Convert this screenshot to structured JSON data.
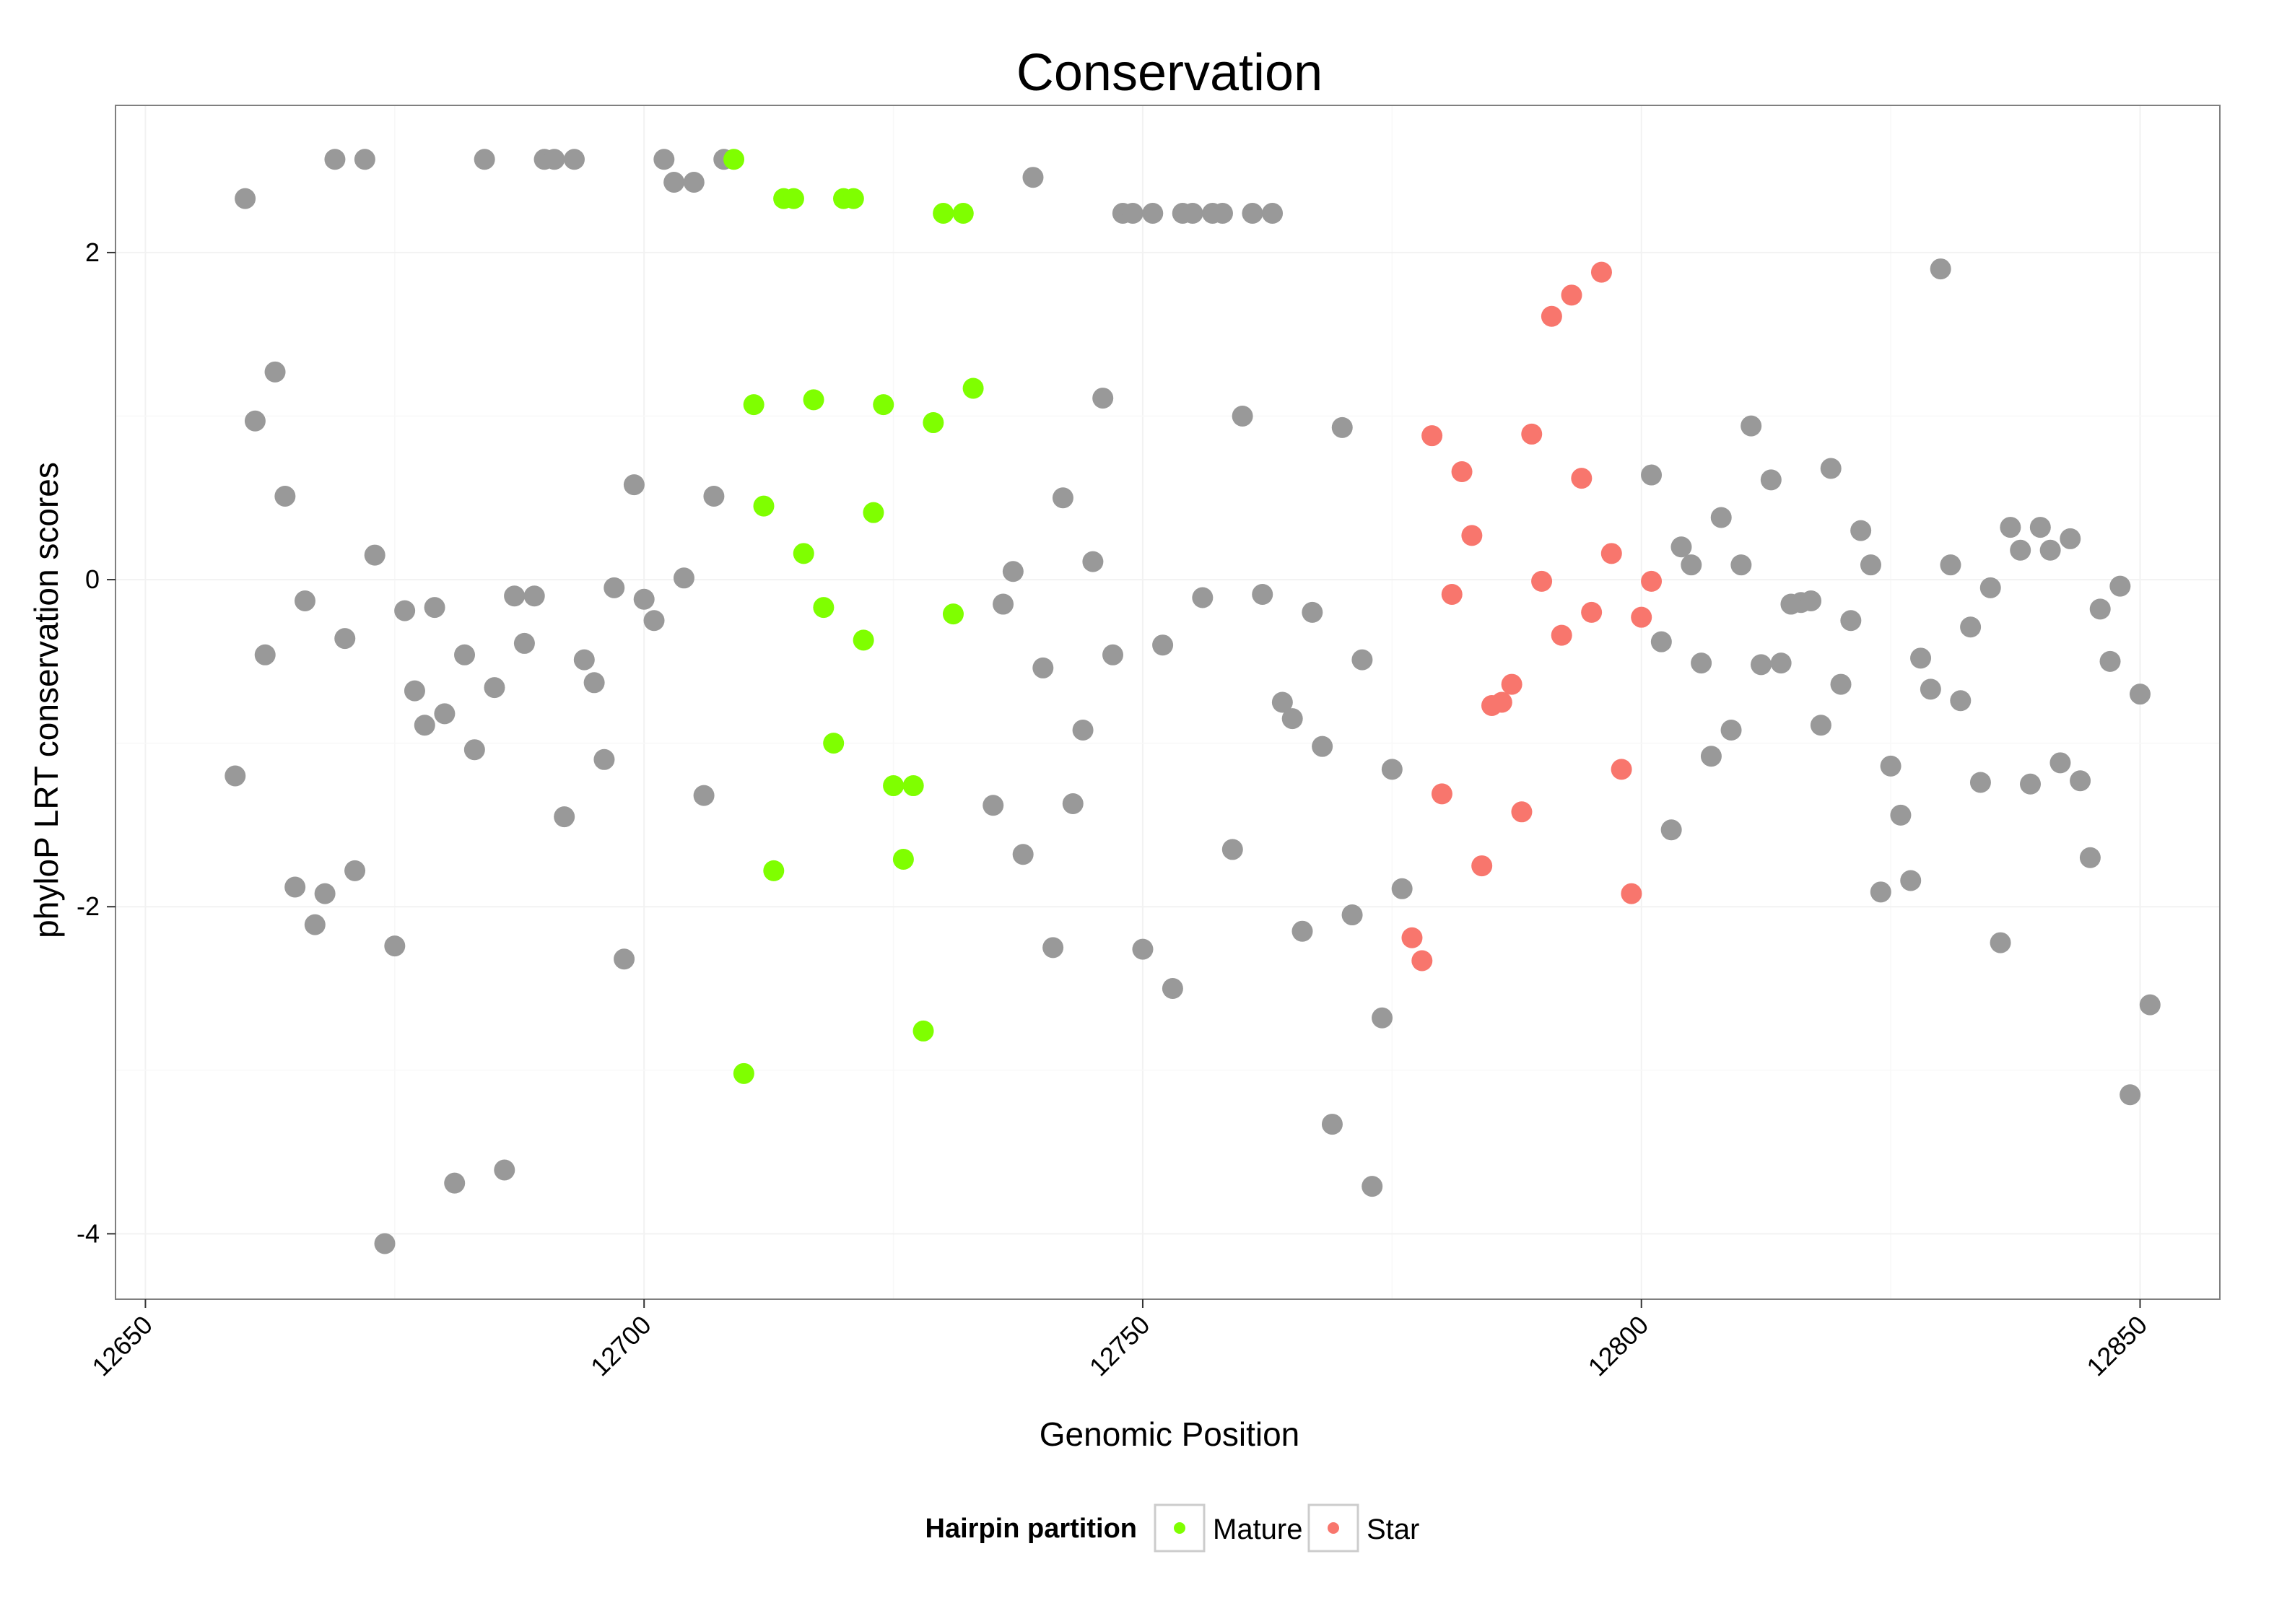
{
  "chart_data": {
    "type": "scatter",
    "title": "Conservation",
    "xlabel": "Genomic Position",
    "ylabel": "phyloP LRT conservation scores",
    "xlim": [
      12647,
      12858
    ],
    "ylim": [
      -4.4,
      2.9
    ],
    "xticks": [
      12650,
      12700,
      12750,
      12800,
      12850
    ],
    "yticks": [
      -4,
      -2,
      0,
      2
    ],
    "grid": true,
    "legend": {
      "title": "Hairpin partition",
      "position": "bottom",
      "entries": [
        {
          "name": "Mature",
          "color": "#7FFF00"
        },
        {
          "name": "Star",
          "color": "#F8766D"
        }
      ]
    },
    "colors": {
      "other": "#999999",
      "Mature": "#7FFF00",
      "Star": "#F8766D"
    },
    "series": [
      {
        "group": "other",
        "points": [
          [
            12659,
            -1.2
          ],
          [
            12660,
            2.33
          ],
          [
            12661,
            0.97
          ],
          [
            12662,
            -0.46
          ],
          [
            12663,
            1.27
          ],
          [
            12664,
            0.51
          ],
          [
            12665,
            -1.88
          ],
          [
            12666,
            -0.13
          ],
          [
            12667,
            -2.11
          ],
          [
            12668,
            -1.92
          ],
          [
            12669,
            2.57
          ],
          [
            12670,
            -0.36
          ],
          [
            12671,
            -1.78
          ],
          [
            12672,
            2.57
          ],
          [
            12673,
            0.15
          ],
          [
            12674,
            -4.06
          ],
          [
            12675,
            -2.24
          ],
          [
            12676,
            -0.19
          ],
          [
            12677,
            -0.68
          ],
          [
            12678,
            -0.89
          ],
          [
            12679,
            -0.17
          ],
          [
            12680,
            -0.82
          ],
          [
            12681,
            -3.69
          ],
          [
            12682,
            -0.46
          ],
          [
            12683,
            -1.04
          ],
          [
            12684,
            2.57
          ],
          [
            12685,
            -0.66
          ],
          [
            12686,
            -3.61
          ],
          [
            12687,
            -0.1
          ],
          [
            12688,
            -0.39
          ],
          [
            12689,
            -0.1
          ],
          [
            12690,
            2.57
          ],
          [
            12691,
            2.57
          ],
          [
            12692,
            -1.45
          ],
          [
            12693,
            2.57
          ],
          [
            12694,
            -0.49
          ],
          [
            12695,
            -0.63
          ],
          [
            12696,
            -1.1
          ],
          [
            12697,
            -0.05
          ],
          [
            12698,
            -2.32
          ],
          [
            12699,
            0.58
          ],
          [
            12700,
            -0.12
          ],
          [
            12701,
            -0.25
          ],
          [
            12702,
            2.57
          ],
          [
            12703,
            2.43
          ],
          [
            12704,
            0.01
          ],
          [
            12705,
            2.43
          ],
          [
            12706,
            -1.32
          ],
          [
            12707,
            0.51
          ],
          [
            12708,
            2.57
          ],
          [
            12735,
            -1.38
          ],
          [
            12736,
            -0.15
          ],
          [
            12737,
            0.05
          ],
          [
            12738,
            -1.68
          ],
          [
            12739,
            2.46
          ],
          [
            12740,
            -0.54
          ],
          [
            12741,
            -2.25
          ],
          [
            12742,
            0.5
          ],
          [
            12743,
            -1.37
          ],
          [
            12744,
            -0.92
          ],
          [
            12745,
            0.11
          ],
          [
            12746,
            1.11
          ],
          [
            12747,
            -0.46
          ],
          [
            12748,
            2.24
          ],
          [
            12749,
            2.24
          ],
          [
            12750,
            -2.26
          ],
          [
            12751,
            2.24
          ],
          [
            12752,
            -0.4
          ],
          [
            12753,
            -2.5
          ],
          [
            12754,
            2.24
          ],
          [
            12755,
            2.24
          ],
          [
            12756,
            -0.11
          ],
          [
            12757,
            2.24
          ],
          [
            12758,
            2.24
          ],
          [
            12759,
            -1.65
          ],
          [
            12760,
            1.0
          ],
          [
            12761,
            2.24
          ],
          [
            12762,
            -0.09
          ],
          [
            12763,
            2.24
          ],
          [
            12764,
            -0.75
          ],
          [
            12765,
            -0.85
          ],
          [
            12766,
            -2.15
          ],
          [
            12767,
            -0.2
          ],
          [
            12768,
            -1.02
          ],
          [
            12769,
            -3.33
          ],
          [
            12770,
            0.93
          ],
          [
            12771,
            -2.05
          ],
          [
            12772,
            -0.49
          ],
          [
            12773,
            -3.71
          ],
          [
            12774,
            -2.68
          ],
          [
            12775,
            -1.16
          ],
          [
            12776,
            -1.89
          ],
          [
            12801,
            0.64
          ],
          [
            12802,
            -0.38
          ],
          [
            12803,
            -1.53
          ],
          [
            12804,
            0.2
          ],
          [
            12805,
            0.09
          ],
          [
            12806,
            -0.51
          ],
          [
            12807,
            -1.08
          ],
          [
            12808,
            0.38
          ],
          [
            12809,
            -0.92
          ],
          [
            12810,
            0.09
          ],
          [
            12811,
            0.94
          ],
          [
            12812,
            -0.52
          ],
          [
            12813,
            0.61
          ],
          [
            12814,
            -0.51
          ],
          [
            12815,
            -0.15
          ],
          [
            12816,
            -0.14
          ],
          [
            12817,
            -0.13
          ],
          [
            12818,
            -0.89
          ],
          [
            12819,
            0.68
          ],
          [
            12820,
            -0.64
          ],
          [
            12821,
            -0.25
          ],
          [
            12822,
            0.3
          ],
          [
            12823,
            0.09
          ],
          [
            12824,
            -1.91
          ],
          [
            12825,
            -1.14
          ],
          [
            12826,
            -1.44
          ],
          [
            12827,
            -1.84
          ],
          [
            12828,
            -0.48
          ],
          [
            12829,
            -0.67
          ],
          [
            12830,
            1.9
          ],
          [
            12831,
            0.09
          ],
          [
            12832,
            -0.74
          ],
          [
            12833,
            -0.29
          ],
          [
            12834,
            -1.24
          ],
          [
            12835,
            -0.05
          ],
          [
            12836,
            -2.22
          ],
          [
            12837,
            0.32
          ],
          [
            12838,
            0.18
          ],
          [
            12839,
            -1.25
          ],
          [
            12840,
            0.32
          ],
          [
            12841,
            0.18
          ],
          [
            12842,
            -1.12
          ],
          [
            12843,
            0.25
          ],
          [
            12844,
            -1.23
          ],
          [
            12845,
            -1.7
          ],
          [
            12846,
            -0.18
          ],
          [
            12847,
            -0.5
          ],
          [
            12848,
            -0.04
          ],
          [
            12849,
            -3.15
          ],
          [
            12850,
            -0.7
          ],
          [
            12851,
            -2.6
          ]
        ]
      },
      {
        "group": "Mature",
        "points": [
          [
            12709,
            2.57
          ],
          [
            12710,
            -3.02
          ],
          [
            12711,
            1.07
          ],
          [
            12712,
            0.45
          ],
          [
            12713,
            -1.78
          ],
          [
            12714,
            2.33
          ],
          [
            12715,
            2.33
          ],
          [
            12716,
            0.16
          ],
          [
            12717,
            1.1
          ],
          [
            12718,
            -0.17
          ],
          [
            12719,
            -1.0
          ],
          [
            12720,
            2.33
          ],
          [
            12721,
            2.33
          ],
          [
            12722,
            -0.37
          ],
          [
            12723,
            0.41
          ],
          [
            12724,
            1.07
          ],
          [
            12725,
            -1.26
          ],
          [
            12726,
            -1.71
          ],
          [
            12727,
            -1.26
          ],
          [
            12728,
            -2.76
          ],
          [
            12729,
            0.96
          ],
          [
            12730,
            2.24
          ],
          [
            12731,
            -0.21
          ],
          [
            12732,
            2.24
          ],
          [
            12733,
            1.17
          ]
        ]
      },
      {
        "group": "Star",
        "points": [
          [
            12777,
            -2.19
          ],
          [
            12778,
            -2.33
          ],
          [
            12779,
            0.88
          ],
          [
            12780,
            -1.31
          ],
          [
            12781,
            -0.09
          ],
          [
            12782,
            0.66
          ],
          [
            12783,
            0.27
          ],
          [
            12784,
            -1.75
          ],
          [
            12785,
            -0.77
          ],
          [
            12786,
            -0.75
          ],
          [
            12787,
            -0.64
          ],
          [
            12788,
            -1.42
          ],
          [
            12789,
            0.89
          ],
          [
            12790,
            -0.01
          ],
          [
            12791,
            1.61
          ],
          [
            12792,
            -0.34
          ],
          [
            12793,
            1.74
          ],
          [
            12794,
            0.62
          ],
          [
            12795,
            -0.2
          ],
          [
            12796,
            1.88
          ],
          [
            12797,
            0.16
          ],
          [
            12798,
            -1.16
          ],
          [
            12799,
            -1.92
          ],
          [
            12800,
            -0.23
          ],
          [
            12801,
            -0.01
          ]
        ]
      }
    ]
  }
}
